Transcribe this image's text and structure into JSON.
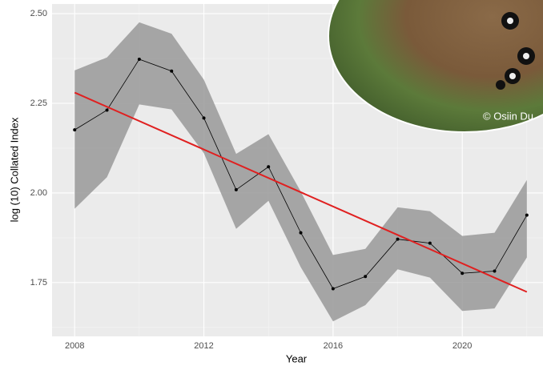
{
  "chart_data": {
    "type": "line",
    "xlabel": "Year",
    "ylabel": "log (10) Collated Index",
    "photo_credit": "© Osiin Du",
    "x": [
      2008,
      2009,
      2010,
      2011,
      2012,
      2013,
      2014,
      2015,
      2016,
      2017,
      2018,
      2019,
      2020,
      2021,
      2022
    ],
    "series": [
      {
        "color": "#000000",
        "values": [
          2.176,
          2.231,
          2.373,
          2.34,
          2.209,
          2.009,
          2.073,
          1.889,
          1.733,
          1.767,
          1.871,
          1.86,
          1.776,
          1.782,
          1.938
        ]
      }
    ],
    "band": {
      "color": "#999999",
      "upper": [
        2.342,
        2.378,
        2.476,
        2.444,
        2.316,
        2.109,
        2.164,
        2.004,
        1.827,
        1.844,
        1.96,
        1.949,
        1.88,
        1.889,
        2.036
      ],
      "lower": [
        1.956,
        2.044,
        2.247,
        2.233,
        2.111,
        1.9,
        1.978,
        1.793,
        1.642,
        1.687,
        1.787,
        1.764,
        1.671,
        1.678,
        1.82
      ]
    },
    "trend": {
      "color": "#e02020",
      "x": [
        2008,
        2022
      ],
      "values": [
        2.28,
        1.724
      ]
    },
    "xlim": [
      2007.3,
      2022.5
    ],
    "ylim": [
      1.6,
      2.527
    ],
    "xticks": [
      2008,
      2012,
      2016,
      2020
    ],
    "minor_xticks": [
      2010,
      2014,
      2018,
      2022
    ],
    "yticks": [
      1.75,
      {
        "value": 2.0,
        "label": "2.00"
      },
      2.25,
      {
        "value": 2.5,
        "label": "2.50"
      }
    ],
    "minor_yticks": [
      1.625,
      1.875,
      2.125,
      2.375
    ],
    "grid": true
  }
}
